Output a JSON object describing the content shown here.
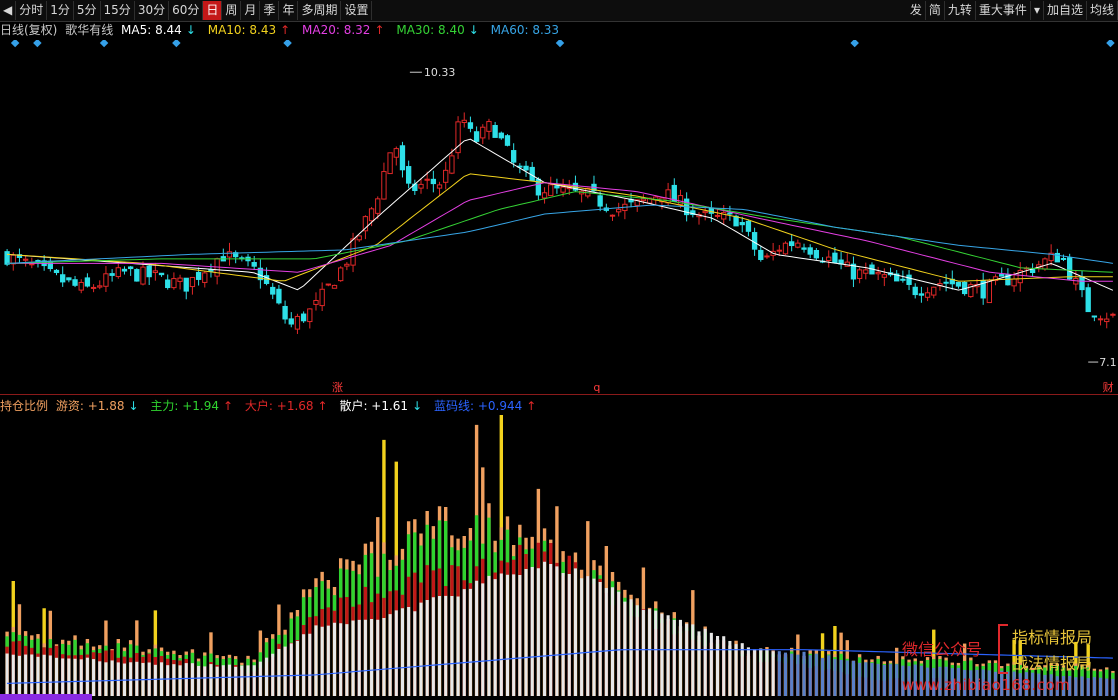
{
  "toolbar": {
    "periods": [
      "分时",
      "1分",
      "5分",
      "15分",
      "30分",
      "60分",
      "日",
      "周",
      "月",
      "季",
      "年",
      "多周期",
      "设置"
    ],
    "active_period": "日",
    "right_items": [
      "发",
      "简",
      "九转",
      "重大事件",
      "▾",
      "加自选",
      "均线"
    ]
  },
  "main_legend": {
    "period": "日线(复权)",
    "indicator": "歌华有线",
    "ma5": {
      "label": "MA5: 8.44",
      "arrow": "↓",
      "color": "#ffffff"
    },
    "ma10": {
      "label": "MA10: 8.43",
      "arrow": "↑",
      "color": "#f2d21d"
    },
    "ma20": {
      "label": "MA20: 8.32",
      "arrow": "↑",
      "color": "#e43fe3"
    },
    "ma30": {
      "label": "MA30: 8.40",
      "arrow": "↓",
      "color": "#35d335"
    },
    "ma60": {
      "label": "MA60: 8.33",
      "arrow": "",
      "color": "#37a5e6"
    }
  },
  "price_annotations": {
    "high": "10.33",
    "low": "7.1",
    "event_zhang": "涨",
    "event_q": "q",
    "event_cai": "财"
  },
  "indicator_legend": {
    "name": "持仓比例",
    "youzi": {
      "label": "游资: +1.88",
      "arrow": "↓",
      "color": "#f0a060"
    },
    "zhuli": {
      "label": "主力: +1.94",
      "arrow": "↑",
      "color": "#2fd32f"
    },
    "dahu": {
      "label": "大户: +1.68",
      "arrow": "↑",
      "color": "#e02828"
    },
    "sanhu": {
      "label": "散户: +1.61",
      "arrow": "↓",
      "color": "#ffffff"
    },
    "lanmaxian": {
      "label": "蓝码线: +0.944",
      "arrow": "↑",
      "color": "#2b63ff"
    }
  },
  "watermark": {
    "line1": "微信公众号",
    "line2": "指标情报局",
    "line3": "战法情报局",
    "line4": "www.zhibiao168.com"
  },
  "colors": {
    "up": "#e02828",
    "down": "#2ee0e8",
    "background": "#000000",
    "divider": "#8a1a1a",
    "event_marker": "#35a0e8"
  },
  "chart_data": [
    {
      "type": "candlestick",
      "title": "歌华有线 日线(复权)",
      "high_label": 10.33,
      "low_label": 7.1,
      "ylim": [
        6.9,
        10.6
      ],
      "candle_count": 180,
      "close_path": [
        [
          0,
          8.28
        ],
        [
          12,
          8.1
        ],
        [
          25,
          7.9
        ],
        [
          38,
          8.1
        ],
        [
          48,
          8.05
        ],
        [
          58,
          7.95
        ],
        [
          70,
          8.3
        ],
        [
          82,
          8.1
        ],
        [
          92,
          7.5
        ],
        [
          100,
          7.7
        ],
        [
          110,
          8.2
        ],
        [
          120,
          8.9
        ],
        [
          126,
          9.6
        ],
        [
          130,
          9.0
        ],
        [
          137,
          9.1
        ],
        [
          142,
          9.1
        ],
        [
          148,
          9.85
        ],
        [
          152,
          9.55
        ],
        [
          158,
          9.75
        ],
        [
          165,
          9.3
        ],
        [
          172,
          9.05
        ],
        [
          180,
          9.0
        ],
        [
          190,
          8.95
        ],
        [
          198,
          8.8
        ],
        [
          205,
          8.85
        ],
        [
          213,
          9.0
        ],
        [
          220,
          8.85
        ],
        [
          228,
          8.7
        ],
        [
          238,
          8.7
        ],
        [
          246,
          8.2
        ],
        [
          252,
          8.4
        ],
        [
          258,
          8.45
        ],
        [
          265,
          8.3
        ],
        [
          275,
          8.1
        ],
        [
          285,
          8.05
        ],
        [
          295,
          7.9
        ],
        [
          305,
          8.0
        ],
        [
          318,
          7.9
        ],
        [
          330,
          8.1
        ],
        [
          343,
          8.3
        ],
        [
          352,
          7.7
        ],
        [
          360,
          7.6
        ]
      ],
      "ma5_path": [
        [
          0,
          8.3
        ],
        [
          40,
          8.2
        ],
        [
          80,
          8.1
        ],
        [
          95,
          7.9
        ],
        [
          120,
          8.7
        ],
        [
          150,
          9.6
        ],
        [
          175,
          9.1
        ],
        [
          205,
          8.9
        ],
        [
          230,
          8.7
        ],
        [
          250,
          8.3
        ],
        [
          280,
          8.15
        ],
        [
          310,
          7.9
        ],
        [
          340,
          8.2
        ],
        [
          360,
          7.9
        ]
      ],
      "ma10_path": [
        [
          0,
          8.3
        ],
        [
          45,
          8.2
        ],
        [
          90,
          8.0
        ],
        [
          120,
          8.4
        ],
        [
          150,
          9.2
        ],
        [
          175,
          9.1
        ],
        [
          205,
          8.95
        ],
        [
          240,
          8.7
        ],
        [
          270,
          8.35
        ],
        [
          310,
          8.0
        ],
        [
          345,
          8.05
        ],
        [
          360,
          8.05
        ]
      ],
      "ma20_path": [
        [
          0,
          8.2
        ],
        [
          50,
          8.2
        ],
        [
          95,
          8.1
        ],
        [
          125,
          8.4
        ],
        [
          150,
          8.9
        ],
        [
          175,
          9.1
        ],
        [
          205,
          9.0
        ],
        [
          245,
          8.7
        ],
        [
          280,
          8.45
        ],
        [
          320,
          8.1
        ],
        [
          350,
          8.0
        ],
        [
          360,
          8.0
        ]
      ],
      "ma30_path": [
        [
          0,
          8.2
        ],
        [
          50,
          8.25
        ],
        [
          100,
          8.25
        ],
        [
          130,
          8.45
        ],
        [
          160,
          8.8
        ],
        [
          185,
          9.0
        ],
        [
          215,
          8.9
        ],
        [
          250,
          8.7
        ],
        [
          290,
          8.5
        ],
        [
          330,
          8.15
        ],
        [
          360,
          8.1
        ]
      ],
      "ma60_path": [
        [
          0,
          8.2
        ],
        [
          60,
          8.3
        ],
        [
          110,
          8.35
        ],
        [
          150,
          8.55
        ],
        [
          175,
          8.75
        ],
        [
          210,
          8.85
        ],
        [
          240,
          8.8
        ],
        [
          270,
          8.6
        ],
        [
          310,
          8.4
        ],
        [
          340,
          8.3
        ],
        [
          360,
          8.2
        ]
      ]
    },
    {
      "type": "bar",
      "title": "持仓比例",
      "series": [
        {
          "name": "游资",
          "value_last": 1.88
        },
        {
          "name": "主力",
          "value_last": 1.94
        },
        {
          "name": "大户",
          "value_last": 1.68
        },
        {
          "name": "散户",
          "value_last": 1.61
        },
        {
          "name": "蓝码线",
          "value_last": 0.944
        }
      ],
      "white_path": [
        [
          0,
          0.5
        ],
        [
          40,
          0.4
        ],
        [
          80,
          0.35
        ],
        [
          100,
          0.8
        ],
        [
          120,
          0.9
        ],
        [
          160,
          1.4
        ],
        [
          175,
          1.6
        ],
        [
          190,
          1.4
        ],
        [
          210,
          1.0
        ],
        [
          240,
          0.6
        ],
        [
          280,
          0.4
        ],
        [
          320,
          0.3
        ],
        [
          360,
          0.2
        ]
      ],
      "red_path": [
        [
          0,
          0.6
        ],
        [
          40,
          0.5
        ],
        [
          80,
          0.3
        ],
        [
          100,
          0.9
        ],
        [
          120,
          1.3
        ],
        [
          150,
          1.5
        ],
        [
          175,
          1.7
        ],
        [
          190,
          1.3
        ],
        [
          210,
          0.9
        ],
        [
          240,
          0.5
        ],
        [
          280,
          0.2
        ],
        [
          360,
          0.2
        ]
      ],
      "green_path": [
        [
          0,
          0.7
        ],
        [
          40,
          0.55
        ],
        [
          80,
          0.4
        ],
        [
          100,
          1.2
        ],
        [
          120,
          1.6
        ],
        [
          150,
          2.0
        ],
        [
          175,
          1.8
        ],
        [
          190,
          1.4
        ],
        [
          210,
          0.95
        ],
        [
          240,
          0.5
        ],
        [
          360,
          0.3
        ]
      ],
      "blue_path": [
        [
          0,
          0.15
        ],
        [
          100,
          0.25
        ],
        [
          200,
          0.55
        ],
        [
          260,
          0.55
        ],
        [
          360,
          0.45
        ]
      ],
      "ylim": [
        0,
        3.3
      ]
    }
  ]
}
